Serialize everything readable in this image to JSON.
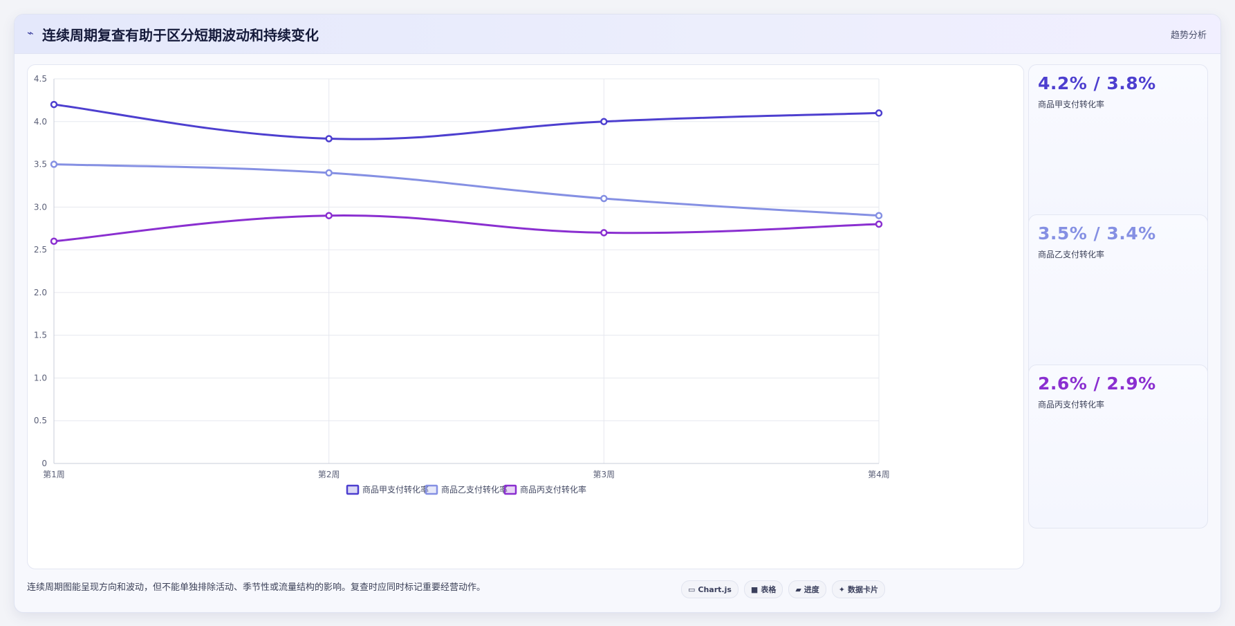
{
  "header": {
    "icon": "trend-icon",
    "icon_glyph": "⌁",
    "title": "连续周期复查有助于区分短期波动和持续变化",
    "tag": "趋势分析"
  },
  "chart_data": {
    "type": "line",
    "categories": [
      "第1周",
      "第2周",
      "第3周",
      "第4周"
    ],
    "series": [
      {
        "name": "商品甲支付转化率",
        "values": [
          4.2,
          3.8,
          4.0,
          4.1
        ],
        "color": "#4d3fcf"
      },
      {
        "name": "商品乙支付转化率",
        "values": [
          3.5,
          3.4,
          3.1,
          2.9
        ],
        "color": "#8590e3"
      },
      {
        "name": "商品丙支付转化率",
        "values": [
          2.6,
          2.9,
          2.7,
          2.8
        ],
        "color": "#8a2fd0"
      }
    ],
    "yticks": [
      "0",
      "0.5",
      "1.0",
      "1.5",
      "2.0",
      "2.5",
      "3.0",
      "3.5",
      "4.0",
      "4.5"
    ],
    "ylim": [
      0,
      4.5
    ],
    "grid": true,
    "smooth": true,
    "legend_position": "bottom"
  },
  "stats": [
    {
      "value": "4.2% / 3.8%",
      "label": "商品甲支付转化率",
      "color": "#4d3fcf"
    },
    {
      "value": "3.5% / 3.4%",
      "label": "商品乙支付转化率",
      "color": "#8590e3"
    },
    {
      "value": "2.6% / 2.9%",
      "label": "商品丙支付转化率",
      "color": "#8a2fd0"
    }
  ],
  "note": "连续周期图能呈现方向和波动，但不能单独排除活动、季节性或流量结构的影响。复查时应同时标记重要经营动作。",
  "badges": [
    {
      "icon": "chart-icon",
      "glyph": "▭",
      "label": "Chart.js"
    },
    {
      "icon": "table-icon",
      "glyph": "■",
      "label": "表格"
    },
    {
      "icon": "progress-icon",
      "glyph": "▰",
      "label": "进度"
    },
    {
      "icon": "card-icon",
      "glyph": "✦",
      "label": "数据卡片"
    }
  ]
}
